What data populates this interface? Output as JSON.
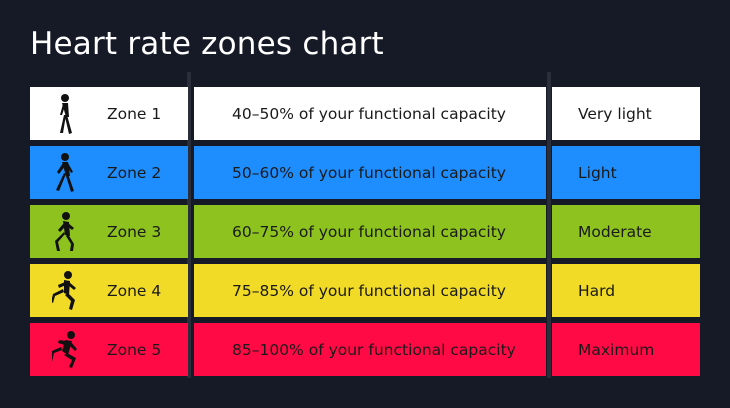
{
  "title": "Heart rate zones chart",
  "chart_data": {
    "type": "table",
    "title": "Heart rate zones chart",
    "rows": [
      {
        "zone": "Zone 1",
        "range": "40–50% of your functional capacity",
        "intensity": "Very light",
        "color": "#ffffff",
        "figure": "walking-icon"
      },
      {
        "zone": "Zone 2",
        "range": "50–60% of your functional capacity",
        "intensity": "Light",
        "color": "#1e8eff",
        "figure": "brisk-walking-icon"
      },
      {
        "zone": "Zone 3",
        "range": "60–75% of your functional capacity",
        "intensity": "Moderate",
        "color": "#8dc21f",
        "figure": "jogging-icon"
      },
      {
        "zone": "Zone 4",
        "range": "75–85% of your functional capacity",
        "intensity": "Hard",
        "color": "#f2db27",
        "figure": "running-icon"
      },
      {
        "zone": "Zone 5",
        "range": "85–100% of your functional capacity",
        "intensity": "Maximum",
        "color": "#ff0a45",
        "figure": "sprinting-icon"
      }
    ]
  }
}
